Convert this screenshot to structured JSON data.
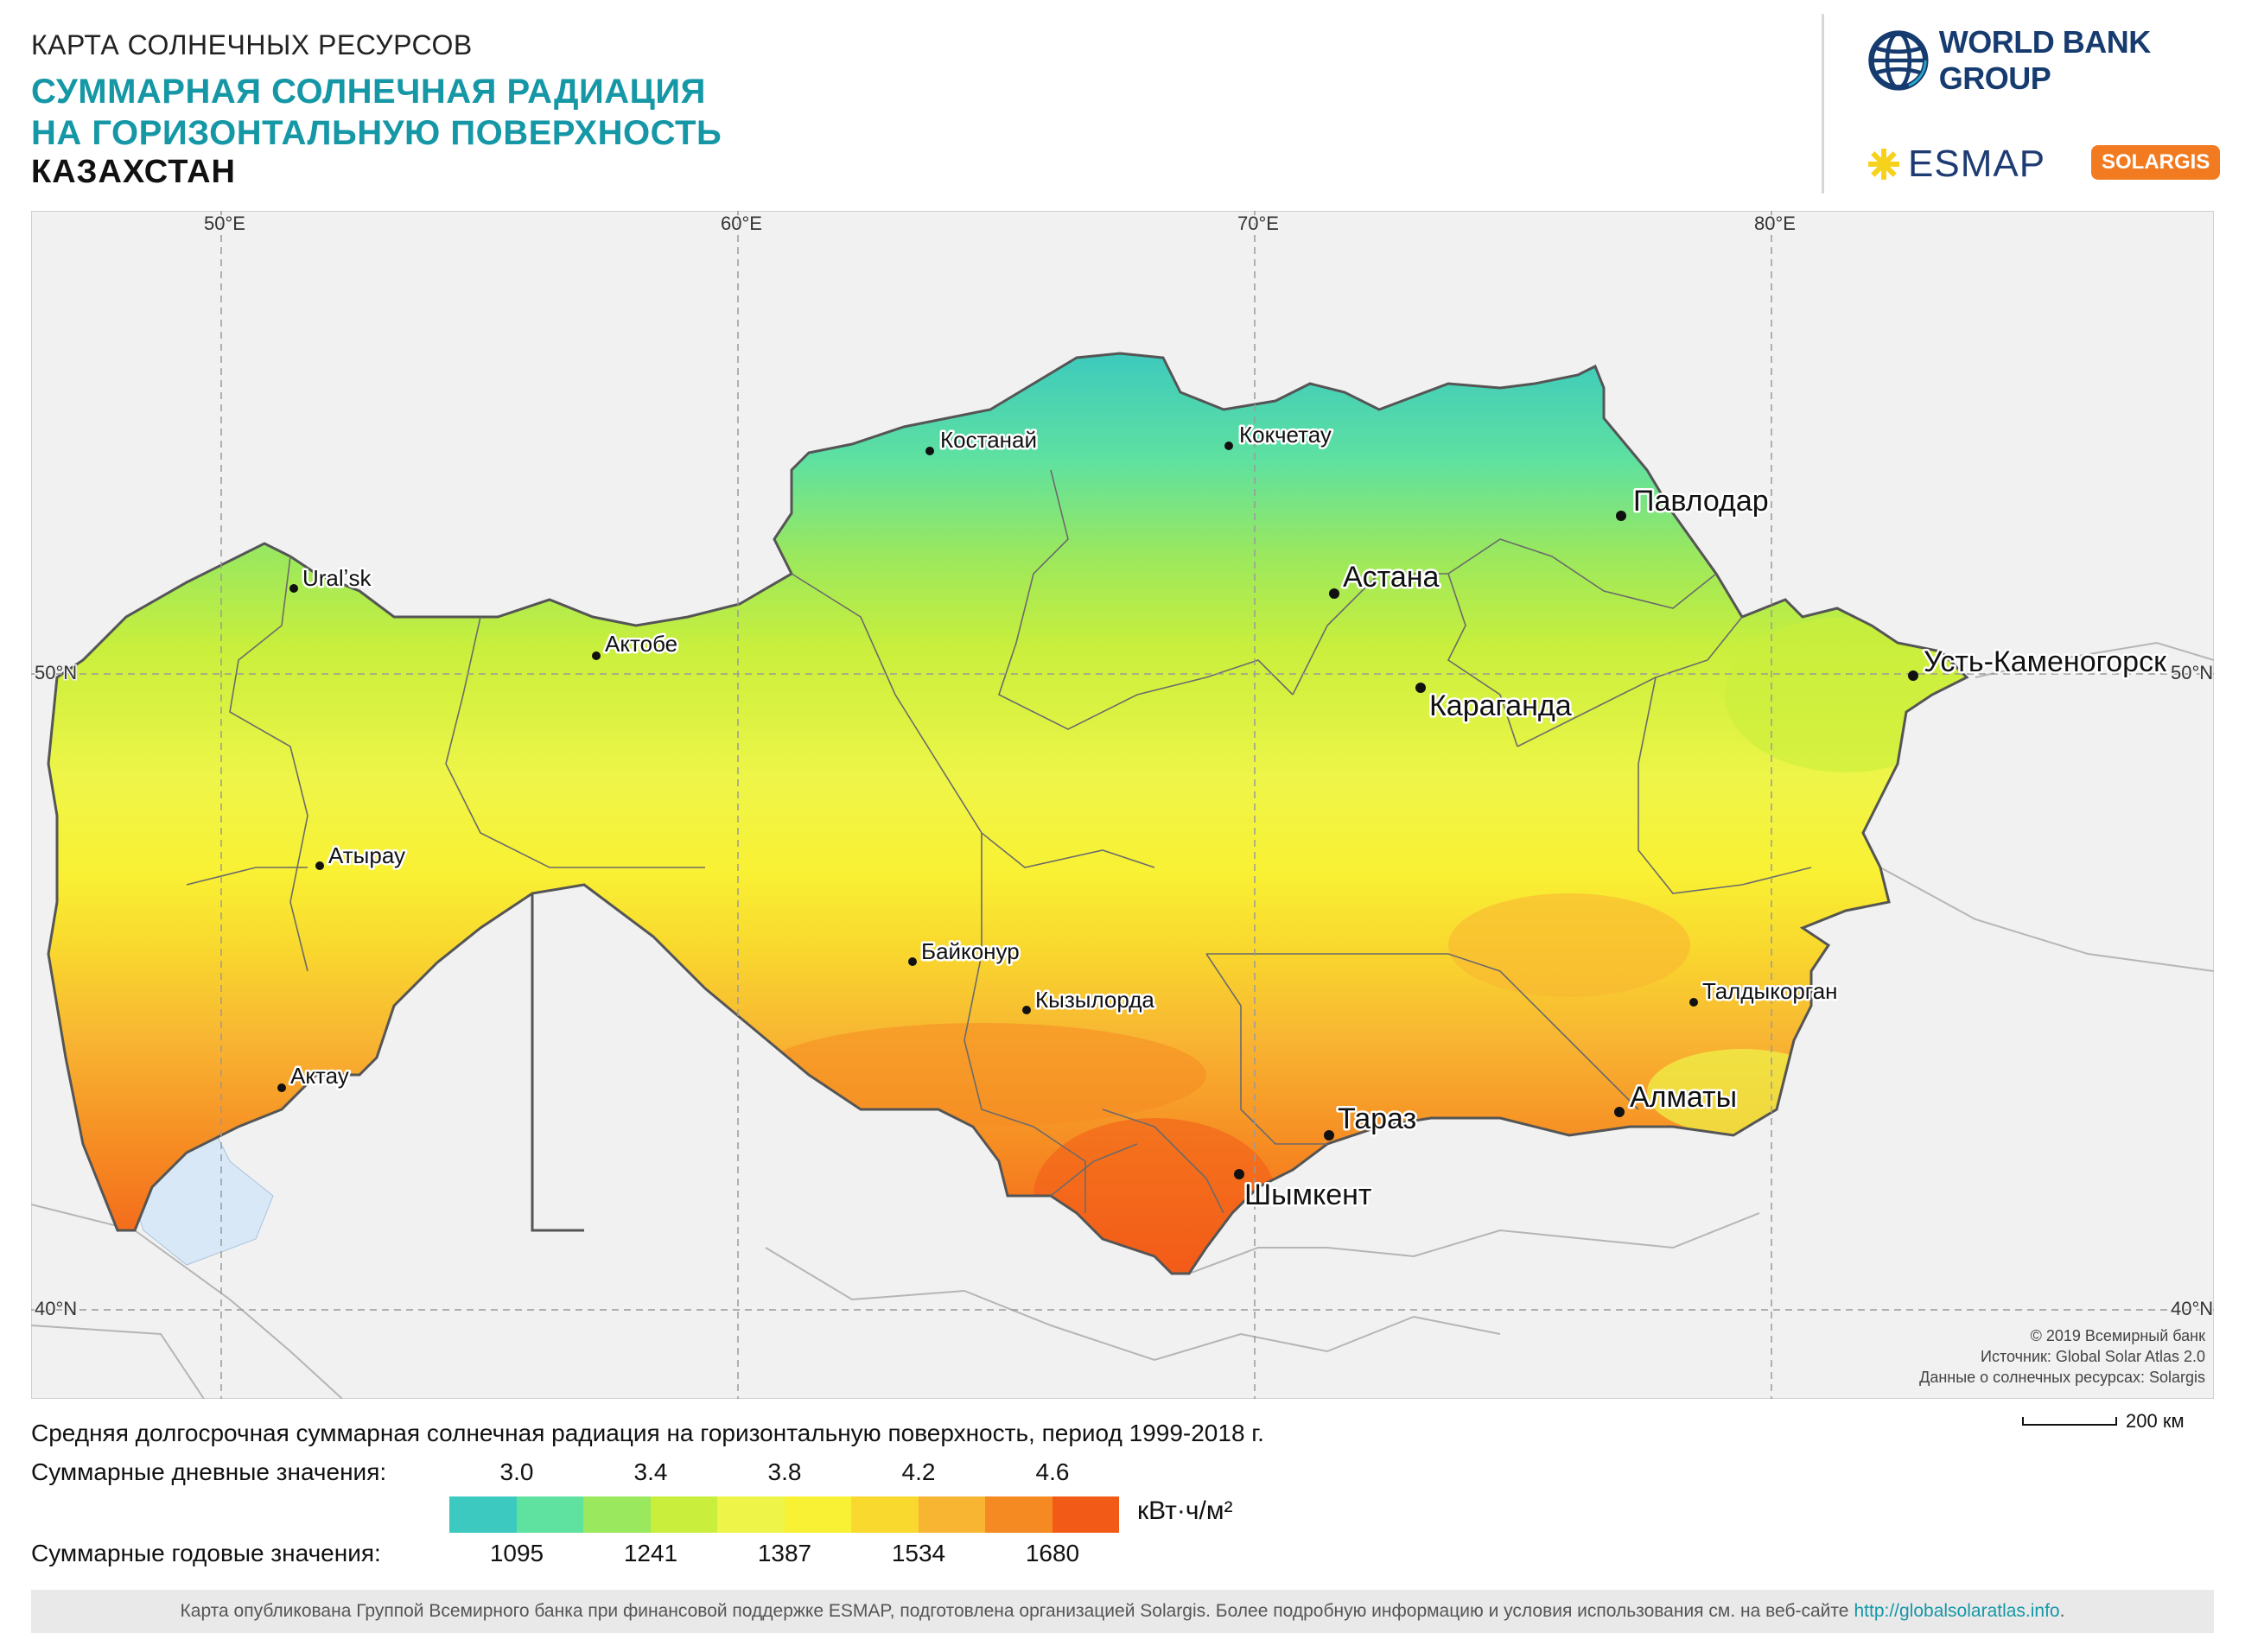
{
  "header": {
    "kicker": "КАРТА СОЛНЕЧНЫХ РЕСУРСОВ",
    "title_line1": "СУММАРНАЯ СОЛНЕЧНАЯ РАДИАЦИЯ",
    "title_line2": "НА ГОРИЗОНТАЛЬНУЮ ПОВЕРХНОСТЬ",
    "country": "КАЗАХСТАН"
  },
  "logos": {
    "world_bank": "WORLD BANK GROUP",
    "esmap": "ESMAP",
    "solargis": "SOLARGIS"
  },
  "map": {
    "longitudes": [
      "50°E",
      "60°E",
      "70°E",
      "80°E"
    ],
    "latitudes": [
      "50°N",
      "40°N"
    ],
    "cities": [
      {
        "name": "Костанай",
        "size": "small"
      },
      {
        "name": "Кокчетау",
        "size": "small"
      },
      {
        "name": "Павлодар",
        "size": "large"
      },
      {
        "name": "Uralʼsk",
        "size": "small"
      },
      {
        "name": "Астана",
        "size": "large"
      },
      {
        "name": "Актобе",
        "size": "small"
      },
      {
        "name": "Усть-Каменогорск",
        "size": "large"
      },
      {
        "name": "Караганда",
        "size": "large"
      },
      {
        "name": "Атырау",
        "size": "small"
      },
      {
        "name": "Байконур",
        "size": "small"
      },
      {
        "name": "Кызылорда",
        "size": "small"
      },
      {
        "name": "Талдыкорган",
        "size": "small"
      },
      {
        "name": "Актау",
        "size": "small"
      },
      {
        "name": "Алматы",
        "size": "large"
      },
      {
        "name": "Тараз",
        "size": "large"
      },
      {
        "name": "Шымкент",
        "size": "large"
      }
    ],
    "credits": {
      "line1": "© 2019 Всемирный банк",
      "line2": "Источник: Global Solar Atlas 2.0",
      "line3": "Данные о солнечных ресурсах: Solargis"
    },
    "colors": {
      "background": "#f1f1f1",
      "water": "#d9e8f7",
      "border": "#555555"
    }
  },
  "legend": {
    "description": "Средняя долгосрочная суммарная солнечная радиация на горизонтальную поверхность, период 1999-2018 г.",
    "daily_label": "Суммарные дневные значения:",
    "daily_ticks": [
      "3.0",
      "3.4",
      "3.8",
      "4.2",
      "4.6"
    ],
    "annual_label": "Суммарные годовые значения:",
    "annual_ticks": [
      "1095",
      "1241",
      "1387",
      "1534",
      "1680"
    ],
    "unit": "кВт·ч/м²",
    "colors": [
      "#3cc9bf",
      "#5fe1a0",
      "#9ae85e",
      "#c9ef3c",
      "#eef548",
      "#f9f134",
      "#f9d92e",
      "#f8b532",
      "#f68a22",
      "#f25a18"
    ],
    "scale": "200 км"
  },
  "footer": {
    "text": "Карта опубликована Группой Всемирного банка при финансовой поддержке ESMAP, подготовлена организацией Solargis. Более подробную информацию и условия использования см. на веб-сайте",
    "link": "http://globalsolaratlas.info",
    "end": "."
  }
}
